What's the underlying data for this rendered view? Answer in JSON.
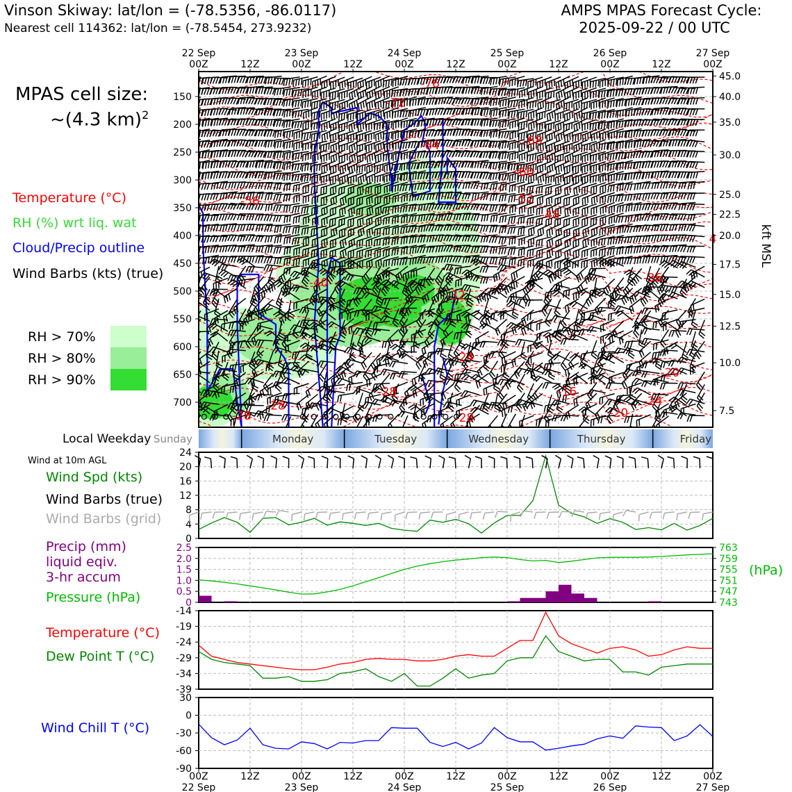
{
  "header": {
    "left_title": "Vinson Skiway: lat/lon = (-78.5356, -86.0117)",
    "left_subtitle": "Nearest cell 114362: lat/lon = (-78.5454, 273.9232)",
    "right_title_line1": "AMPS MPAS Forecast Cycle:",
    "right_title_line2": "2025-09-22 / 00 UTC"
  },
  "sidebar": {
    "cell_size_line1": "MPAS cell size:",
    "cell_size_line2": "~(4.3 km)",
    "cell_size_sup": "2",
    "legend_temperature": "Temperature (°C)",
    "legend_rh": "RH (%) wrt liq. wat",
    "legend_cloud": "Cloud/Precip outline",
    "legend_wind": "Wind Barbs (kts) (true)",
    "rh_levels": [
      {
        "label": "RH > 70%",
        "color": "#ccffcc"
      },
      {
        "label": "RH > 80%",
        "color": "#99ee99"
      },
      {
        "label": "RH > 90%",
        "color": "#33dd33"
      }
    ],
    "local_weekday": "Local Weekday",
    "wind_10m": "Wind at 10m AGL",
    "wind_spd_label": "Wind Spd (kts)",
    "wind_barbs_true": "Wind Barbs (true)",
    "wind_barbs_grid": "Wind Barbs (grid)",
    "precip_label_1": "Precip (mm)",
    "precip_label_2": "liquid eqiv.",
    "precip_label_3": "3-hr accum",
    "pressure_label": "Pressure (hPa)",
    "temp_label": "Temperature (°C)",
    "dewpoint_label": "Dew Point T (°C)",
    "windchill_label": "Wind Chill T (°C)"
  },
  "time_axis": {
    "top_ticks": [
      {
        "hour": "22 Sep",
        "z": "00Z"
      },
      {
        "hour": "",
        "z": "12Z"
      },
      {
        "hour": "23 Sep",
        "z": "00Z"
      },
      {
        "hour": "",
        "z": "12Z"
      },
      {
        "hour": "24 Sep",
        "z": "00Z"
      },
      {
        "hour": "",
        "z": "12Z"
      },
      {
        "hour": "25 Sep",
        "z": "00Z"
      },
      {
        "hour": "",
        "z": "12Z"
      },
      {
        "hour": "26 Sep",
        "z": "00Z"
      },
      {
        "hour": "",
        "z": "12Z"
      },
      {
        "hour": "27 Sep",
        "z": "00Z"
      }
    ],
    "weekdays": [
      "Sunday",
      "Monday",
      "Tuesday",
      "Wednesday",
      "Thursday",
      "Friday"
    ]
  },
  "colors": {
    "temperature": "#ff0000",
    "rh_text": "#33dd33",
    "cloud": "#0000ff",
    "wind_speed": "#008800",
    "precip": "#800080",
    "pressure": "#00bb00",
    "dewpoint": "#008800",
    "windchill": "#0000ff",
    "grid_barbs": "#aaaaaa"
  },
  "chart_data": [
    {
      "type": "heatmap",
      "name": "cross-section",
      "x": [
        0,
        12,
        24,
        36,
        48,
        60,
        72,
        84,
        96,
        108,
        120
      ],
      "y_left_label": "",
      "y_left_ticks": [
        150,
        200,
        250,
        300,
        350,
        400,
        450,
        500,
        550,
        600,
        650,
        700
      ],
      "ylim_hpa": [
        105,
        745
      ],
      "y_right_label": "kft MSL",
      "y_right_ticks": [
        "45.0",
        "40.0",
        "35.0",
        "30.0",
        "25.0",
        "22.5",
        "20.0",
        "17.5",
        "15.0",
        "12.5",
        "10.0",
        "7.5"
      ],
      "temperature_labels": [
        {
          "text": "-76",
          "t": 27,
          "p": 134
        },
        {
          "text": "-72",
          "t": 23,
          "p": 168
        },
        {
          "text": "-72",
          "t": 117,
          "p": 122
        },
        {
          "text": "-64",
          "t": 27,
          "p": 245
        },
        {
          "text": "-68",
          "t": 39,
          "p": 236
        },
        {
          "text": "-60",
          "t": 38,
          "p": 293
        },
        {
          "text": "-56",
          "t": 6,
          "p": 345
        },
        {
          "text": "-52",
          "t": 38,
          "p": 341
        },
        {
          "text": "-48",
          "t": 41,
          "p": 370
        },
        {
          "text": "-40",
          "t": 14,
          "p": 492
        },
        {
          "text": "-32",
          "t": 30,
          "p": 515
        },
        {
          "text": "-36",
          "t": 53,
          "p": 483
        },
        {
          "text": "-24",
          "t": 31,
          "p": 626
        },
        {
          "text": "-28",
          "t": 22,
          "p": 688
        },
        {
          "text": "-28",
          "t": 9,
          "p": 713
        },
        {
          "text": "-28",
          "t": 5,
          "p": 731
        },
        {
          "text": "-28",
          "t": 31,
          "p": 735
        },
        {
          "text": "-16",
          "t": 43,
          "p": 688
        },
        {
          "text": "-20",
          "t": 55,
          "p": 654
        },
        {
          "text": "-24",
          "t": 53,
          "p": 705
        },
        {
          "text": "-20",
          "t": 49,
          "p": 726
        },
        {
          "text": "4",
          "t": 60,
          "p": 413
        }
      ]
    },
    {
      "type": "line",
      "name": "wind-speed",
      "x": [
        0,
        3,
        6,
        9,
        12,
        15,
        18,
        21,
        24,
        27,
        30,
        33,
        36,
        39,
        42,
        45,
        48,
        51,
        54,
        57,
        60,
        63,
        66,
        69,
        72,
        75,
        78,
        81,
        84,
        87,
        90,
        93,
        96,
        99,
        102,
        105,
        108,
        111,
        114,
        117,
        120
      ],
      "series": [
        {
          "name": "Wind Spd (kts)",
          "values": [
            2.5,
            4.3,
            5.8,
            4.5,
            1.7,
            5.6,
            5.8,
            3.8,
            4.5,
            5.6,
            3.7,
            4.6,
            4.2,
            3.6,
            4.2,
            2.8,
            2.3,
            2.0,
            5.1,
            4.5,
            5.3,
            4.1,
            1.5,
            4.3,
            6.4,
            6.4,
            10.5,
            23.0,
            9.3,
            7.0,
            6.0,
            4.2,
            5.5,
            4.5,
            2.5,
            3.0,
            2.4,
            4.2,
            2.3,
            3.6,
            5.6
          ]
        }
      ],
      "ylim": [
        0,
        24
      ],
      "yticks": [
        0,
        4,
        8,
        12,
        16,
        20,
        24
      ]
    },
    {
      "type": "bar",
      "name": "precip-pressure",
      "x": [
        0,
        3,
        6,
        9,
        12,
        15,
        18,
        21,
        24,
        27,
        30,
        33,
        36,
        39,
        42,
        45,
        48,
        51,
        54,
        57,
        60,
        63,
        66,
        69,
        72,
        75,
        78,
        81,
        84,
        87,
        90,
        93,
        96,
        99,
        102,
        105,
        108,
        111,
        114,
        117,
        120
      ],
      "series": [
        {
          "name": "Precip (mm)",
          "values": [
            0.3,
            0.0,
            0.05,
            0.0,
            0.0,
            0.0,
            0.0,
            0.0,
            0.0,
            0.0,
            0.0,
            0.0,
            0.0,
            0.0,
            0.0,
            0.0,
            0.0,
            0.0,
            0.0,
            0.0,
            0.0,
            0.0,
            0.0,
            0.0,
            0.05,
            0.2,
            0.2,
            0.5,
            0.8,
            0.4,
            0.2,
            0.0,
            0.0,
            0.0,
            0.0,
            0.05,
            0.0,
            0.0,
            0.0,
            0.0,
            0.0
          ]
        },
        {
          "name": "Pressure (hPa)",
          "values": [
            751.2,
            750.8,
            750.3,
            749.7,
            749.0,
            748.3,
            747.5,
            746.7,
            746.0,
            746.1,
            746.8,
            747.7,
            749.0,
            750.5,
            752.0,
            753.5,
            755.0,
            756.2,
            757.1,
            757.8,
            758.4,
            758.8,
            759.3,
            759.5,
            759.3,
            758.6,
            758.1,
            758.3,
            757.5,
            758.0,
            758.6,
            759.2,
            759.4,
            759.4,
            759.4,
            759.5,
            759.7,
            760.0,
            760.3,
            760.5,
            760.7
          ]
        }
      ],
      "ylim_precip": [
        0,
        2.5
      ],
      "yticks_precip": [
        0,
        0.5,
        1.0,
        1.5,
        2.0,
        2.5
      ],
      "ylim_pressure": [
        743,
        763
      ],
      "yticks_pressure": [
        743,
        747,
        751,
        755,
        759,
        763
      ],
      "unit_right": "(hPa)"
    },
    {
      "type": "line",
      "name": "temp-dewpoint",
      "x": [
        0,
        3,
        6,
        9,
        12,
        15,
        18,
        21,
        24,
        27,
        30,
        33,
        36,
        39,
        42,
        45,
        48,
        51,
        54,
        57,
        60,
        63,
        66,
        69,
        72,
        75,
        78,
        81,
        84,
        87,
        90,
        93,
        96,
        99,
        102,
        105,
        108,
        111,
        114,
        117,
        120
      ],
      "series": [
        {
          "name": "Temperature (°C)",
          "values": [
            -25.0,
            -28.5,
            -29.5,
            -30.5,
            -31.0,
            -31.5,
            -32.0,
            -32.5,
            -32.8,
            -32.8,
            -32.0,
            -31.0,
            -30.5,
            -29.5,
            -29.2,
            -29.5,
            -29.5,
            -30.0,
            -30.0,
            -29.5,
            -28.5,
            -28.0,
            -28.5,
            -28.5,
            -26.0,
            -23.5,
            -23.5,
            -14.5,
            -22.0,
            -24.5,
            -26.0,
            -27.5,
            -26.0,
            -25.5,
            -26.5,
            -28.5,
            -28.0,
            -26.5,
            -25.5,
            -26.0,
            -26.0
          ]
        },
        {
          "name": "Dew Point T (°C)",
          "values": [
            -27.0,
            -29.5,
            -30.5,
            -31.0,
            -31.5,
            -35.5,
            -35.5,
            -35.0,
            -36.5,
            -36.5,
            -36.0,
            -34.0,
            -33.5,
            -32.5,
            -35.0,
            -36.5,
            -34.0,
            -38.0,
            -38.0,
            -35.5,
            -32.5,
            -35.5,
            -34.5,
            -34.0,
            -30.0,
            -29.0,
            -29.0,
            -22.0,
            -27.0,
            -28.5,
            -30.0,
            -29.5,
            -29.5,
            -33.5,
            -33.5,
            -34.5,
            -32.0,
            -31.5,
            -31.0,
            -31.0,
            -31.0
          ]
        }
      ],
      "ylim": [
        -39,
        -14
      ],
      "yticks": [
        -39,
        -34,
        -29,
        -24,
        -19,
        -14
      ]
    },
    {
      "type": "line",
      "name": "wind-chill",
      "x": [
        0,
        3,
        6,
        9,
        12,
        15,
        18,
        21,
        24,
        27,
        30,
        33,
        36,
        39,
        42,
        45,
        48,
        51,
        54,
        57,
        60,
        63,
        66,
        69,
        72,
        75,
        78,
        81,
        84,
        87,
        90,
        93,
        96,
        99,
        102,
        105,
        108,
        111,
        114,
        117,
        120
      ],
      "series": [
        {
          "name": "Wind Chill T (°C)",
          "values": [
            -15,
            -38,
            -50,
            -42,
            -22,
            -50,
            -56,
            -57,
            -45,
            -48,
            -57,
            -46,
            -47,
            -43,
            -43,
            -21,
            -22,
            -22,
            -46,
            -53,
            -46,
            -57,
            -47,
            -21,
            -38,
            -45,
            -45,
            -59,
            -56,
            -52,
            -49,
            -40,
            -35,
            -39,
            -18,
            -20,
            -21,
            -43,
            -35,
            -16,
            -36
          ]
        }
      ],
      "ylim": [
        -90,
        30
      ],
      "yticks": [
        -90,
        -60,
        -30,
        0,
        30
      ]
    }
  ]
}
